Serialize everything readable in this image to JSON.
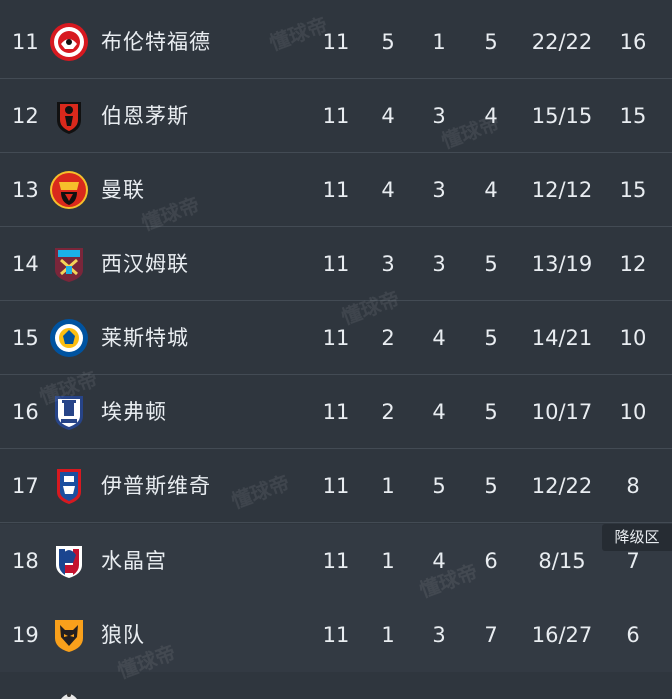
{
  "watermark_text": "懂球帝",
  "zone_label": "降级区",
  "rows": [
    {
      "rank": "11",
      "team": "布伦特福德",
      "played": "11",
      "won": "5",
      "drawn": "1",
      "lost": "5",
      "goals": "22/22",
      "points": "16",
      "badge": "brentford-badge"
    },
    {
      "rank": "12",
      "team": "伯恩茅斯",
      "played": "11",
      "won": "4",
      "drawn": "3",
      "lost": "4",
      "goals": "15/15",
      "points": "15",
      "badge": "bournemouth-badge"
    },
    {
      "rank": "13",
      "team": "曼联",
      "played": "11",
      "won": "4",
      "drawn": "3",
      "lost": "4",
      "goals": "12/12",
      "points": "15",
      "badge": "man-utd-badge"
    },
    {
      "rank": "14",
      "team": "西汉姆联",
      "played": "11",
      "won": "3",
      "drawn": "3",
      "lost": "5",
      "goals": "13/19",
      "points": "12",
      "badge": "west-ham-badge"
    },
    {
      "rank": "15",
      "team": "莱斯特城",
      "played": "11",
      "won": "2",
      "drawn": "4",
      "lost": "5",
      "goals": "14/21",
      "points": "10",
      "badge": "leicester-badge"
    },
    {
      "rank": "16",
      "team": "埃弗顿",
      "played": "11",
      "won": "2",
      "drawn": "4",
      "lost": "5",
      "goals": "10/17",
      "points": "10",
      "badge": "everton-badge"
    },
    {
      "rank": "17",
      "team": "伊普斯维奇",
      "played": "11",
      "won": "1",
      "drawn": "5",
      "lost": "5",
      "goals": "12/22",
      "points": "8",
      "badge": "ipswich-badge"
    },
    {
      "rank": "18",
      "team": "水晶宫",
      "played": "11",
      "won": "1",
      "drawn": "4",
      "lost": "6",
      "goals": "8/15",
      "points": "7",
      "badge": "crystal-palace-badge"
    },
    {
      "rank": "19",
      "team": "狼队",
      "played": "11",
      "won": "1",
      "drawn": "3",
      "lost": "7",
      "goals": "16/27",
      "points": "6",
      "badge": "wolves-badge"
    }
  ]
}
